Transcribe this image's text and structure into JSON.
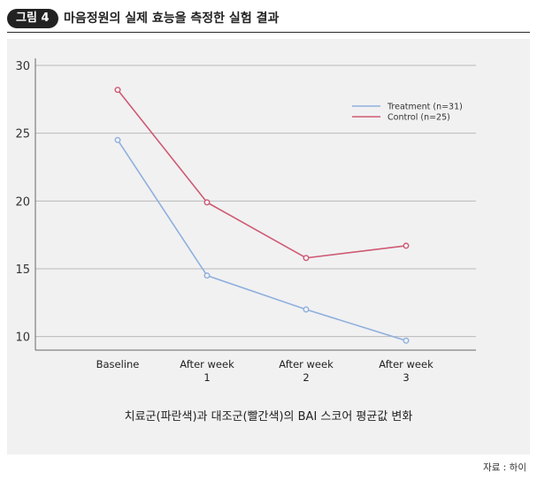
{
  "header": {
    "badge": "그림 4",
    "title": "마음정원의 실제 효능을 측정한 실험 결과"
  },
  "caption": "치료군(파란색)과 대조군(빨간색)의 BAI 스코어 평균값 변화",
  "source": "자료 : 하이",
  "chart_data": {
    "type": "line",
    "categories": [
      [
        "Baseline"
      ],
      [
        "After week",
        "1"
      ],
      [
        "After week",
        "2"
      ],
      [
        "After week",
        "3"
      ]
    ],
    "ylim": [
      9,
      30
    ],
    "yticks": [
      10,
      15,
      20,
      25,
      30
    ],
    "grid": true,
    "legend_position": "top-right",
    "series": [
      {
        "name": "Treatment (n=31)",
        "color": "#8fb0dc",
        "values": [
          24.5,
          14.5,
          12.0,
          9.7
        ]
      },
      {
        "name": "Control (n=25)",
        "color": "#cf5a73",
        "values": [
          28.2,
          19.9,
          15.8,
          16.7
        ]
      }
    ]
  }
}
